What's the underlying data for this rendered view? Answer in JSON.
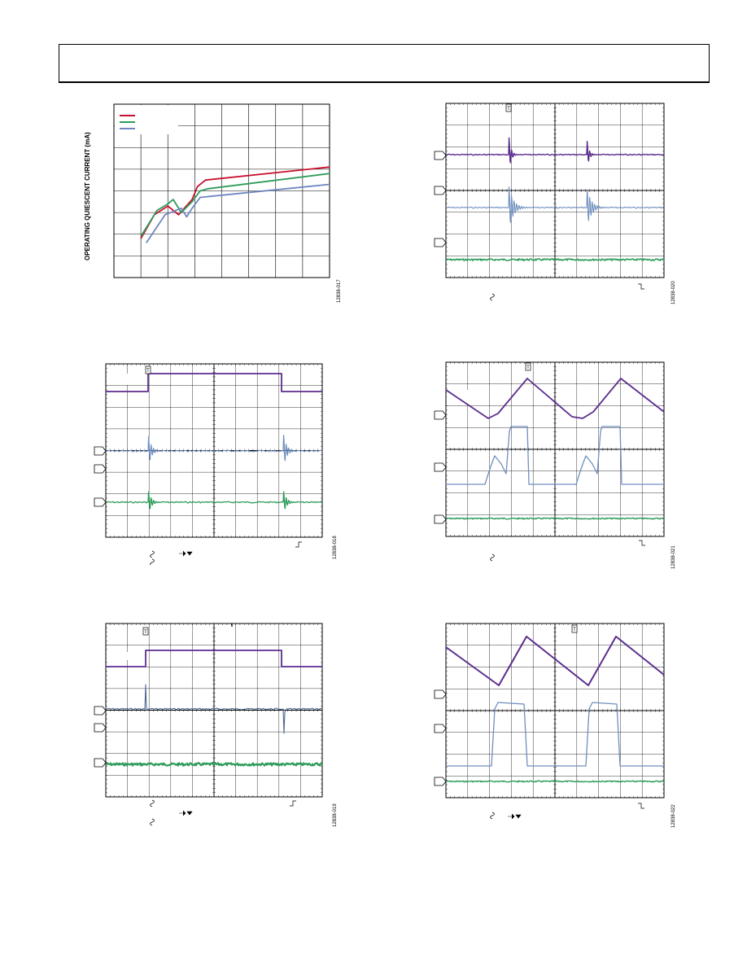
{
  "header": {
    "title": ""
  },
  "quiescent_plot": {
    "ylabel": "OPERATING QUIESCENT CURRENT (mA)",
    "figure_id": "12838-017",
    "legend_colors": [
      "#c8102e",
      "#2e9c5a",
      "#6f86c0"
    ],
    "chart_data": {
      "type": "line",
      "title": "",
      "xlabel": "",
      "ylabel": "OPERATING QUIESCENT CURRENT (mA)",
      "grid": true,
      "legend": "top-left",
      "x_divisions": 8,
      "y_divisions": 8,
      "series": [
        {
          "color": "#c8102e",
          "points": [
            [
              1.0,
              1.8
            ],
            [
              1.5,
              2.9
            ],
            [
              2.0,
              3.3
            ],
            [
              2.4,
              2.9
            ],
            [
              2.9,
              3.6
            ],
            [
              3.1,
              4.2
            ],
            [
              3.4,
              4.5
            ],
            [
              8.0,
              5.1
            ]
          ]
        },
        {
          "color": "#2e9c5a",
          "points": [
            [
              1.0,
              1.9
            ],
            [
              1.6,
              3.1
            ],
            [
              2.0,
              3.4
            ],
            [
              2.2,
              3.6
            ],
            [
              2.5,
              3.0
            ],
            [
              2.9,
              3.5
            ],
            [
              3.2,
              4.0
            ],
            [
              3.5,
              4.1
            ],
            [
              8.0,
              4.8
            ]
          ]
        },
        {
          "color": "#6f86c0",
          "points": [
            [
              1.2,
              1.6
            ],
            [
              1.9,
              2.9
            ],
            [
              2.5,
              3.2
            ],
            [
              2.7,
              2.8
            ],
            [
              2.9,
              3.2
            ],
            [
              3.2,
              3.7
            ],
            [
              8.0,
              4.3
            ]
          ]
        }
      ]
    }
  },
  "scope_captures": [
    {
      "id": "fig-18",
      "figure_id": "12838-018",
      "trigger_marker": "T",
      "channel_colors": [
        "#5b2d8e",
        "#6f8fc0",
        "#2e9c5a"
      ]
    },
    {
      "id": "fig-19",
      "figure_id": "12838-019",
      "trigger_marker": "T",
      "channel_colors": [
        "#5b2d8e",
        "#4f6890",
        "#2e9c5a"
      ]
    },
    {
      "id": "fig-20",
      "figure_id": "12838-020",
      "trigger_marker": "T",
      "channel_colors": [
        "#5b2d8e",
        "#6f8fc0",
        "#2e9c5a"
      ]
    },
    {
      "id": "fig-21",
      "figure_id": "12838-021",
      "trigger_marker": "T",
      "channel_colors": [
        "#5b2d8e",
        "#6f8fc0",
        "#2e9c5a"
      ]
    },
    {
      "id": "fig-22",
      "figure_id": "12838-022",
      "trigger_marker": "T",
      "channel_colors": [
        "#5b2d8e",
        "#6f8fc0",
        "#2e9c5a"
      ]
    }
  ]
}
